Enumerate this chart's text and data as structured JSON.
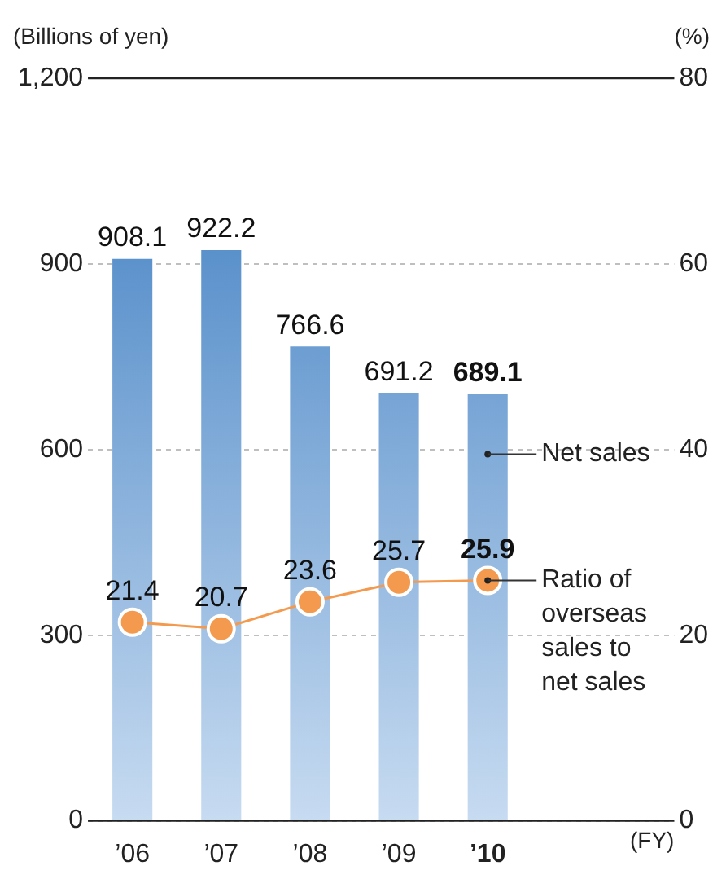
{
  "chart_data": {
    "type": "bar",
    "ylabel": "(Billions of yen)",
    "y2label": "(%)",
    "xlabel": "(FY)",
    "categories": [
      "’06",
      "’07",
      "’08",
      "’09",
      "’10"
    ],
    "series": [
      {
        "name": "Net sales",
        "color": "#3a7bc0",
        "values": [
          908.1,
          922.2,
          766.6,
          691.2,
          689.1
        ]
      },
      {
        "name": "Ratio of overseas sales to net sales",
        "type": "line",
        "axis": "y2",
        "color": "#f39a4e",
        "values": [
          21.4,
          20.7,
          23.6,
          25.7,
          25.9
        ]
      }
    ],
    "ylim": [
      0,
      1200
    ],
    "yticks": [
      0,
      300,
      600,
      900,
      {
        "value": 1200,
        "label": "1,200"
      }
    ],
    "y2lim": [
      0,
      80
    ],
    "y2ticks": [
      0,
      20,
      40,
      60,
      80
    ],
    "grid": "y",
    "legend": "right",
    "marker": "circle",
    "data_labels": true
  }
}
